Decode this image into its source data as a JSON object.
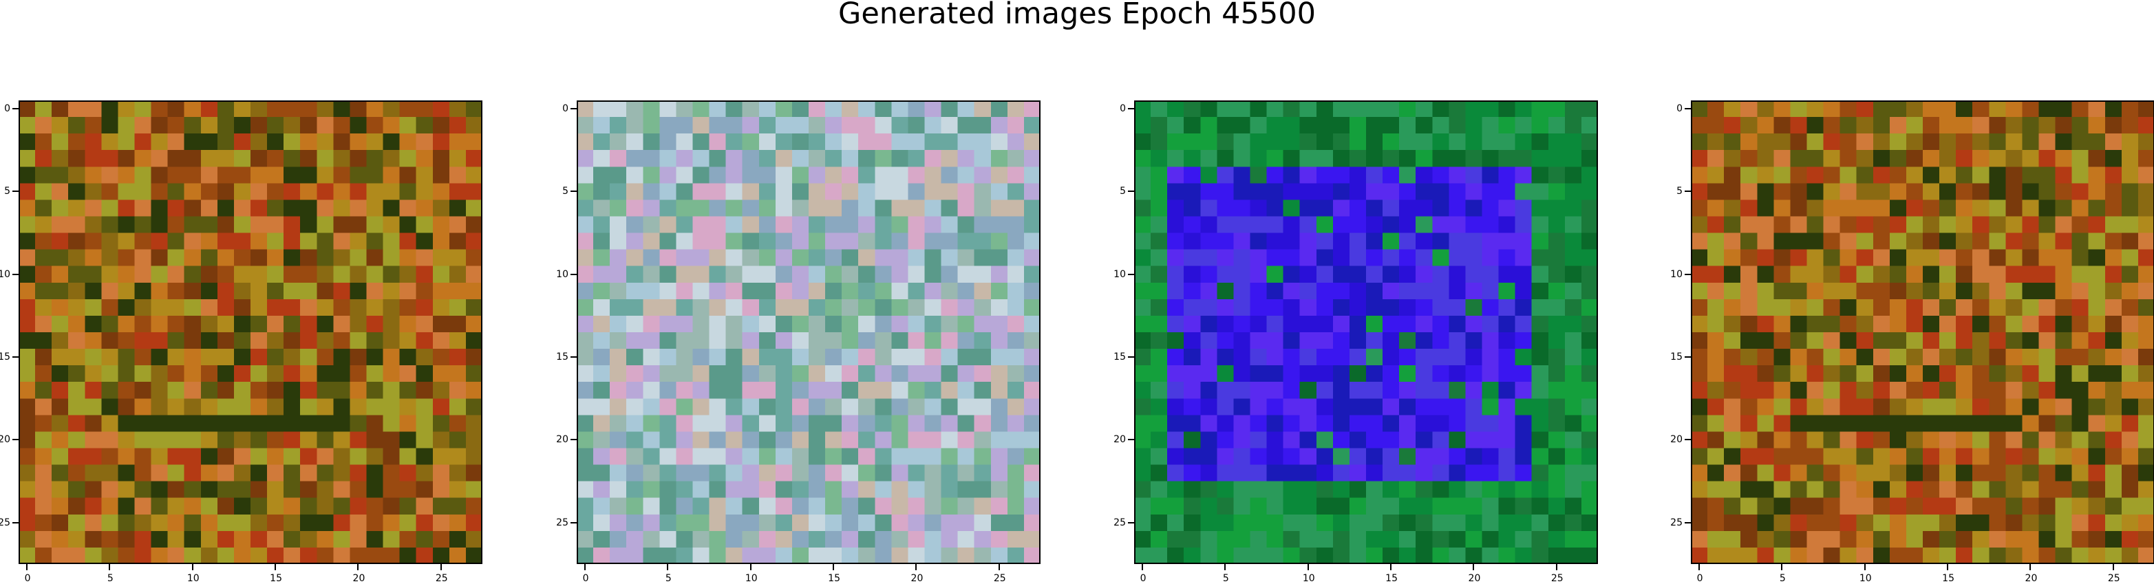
{
  "figure": {
    "title": "Generated images Epoch 45500"
  },
  "chart_data": [
    {
      "type": "heatmap",
      "grid": [
        28,
        28
      ],
      "xticks": [
        "0",
        "5",
        "10",
        "15",
        "20",
        "25"
      ],
      "yticks": [
        "0",
        "5",
        "10",
        "15",
        "20",
        "25"
      ],
      "xlim": [
        -0.5,
        27.5
      ],
      "ylim": [
        27.5,
        -0.5
      ],
      "palette": [
        "#b08a1c",
        "#8a6a12",
        "#c4761e",
        "#9a4a10",
        "#7a3a0c",
        "#5a5a10",
        "#b43a14",
        "#d07a3a",
        "#a0a02a",
        "#2a3a0a"
      ],
      "notes": "pixel art: mostly olive/orange/brown noise, with dark streak along row 19"
    },
    {
      "type": "heatmap",
      "grid": [
        28,
        28
      ],
      "xticks": [
        "0",
        "5",
        "10",
        "15",
        "20",
        "25"
      ],
      "yticks": [
        "0",
        "5",
        "10",
        "15",
        "20",
        "25"
      ],
      "xlim": [
        -0.5,
        27.5
      ],
      "ylim": [
        27.5,
        -0.5
      ],
      "palette": [
        "#9ab8b0",
        "#b8a8d8",
        "#7ab890",
        "#c8d8e0",
        "#5a9a8a",
        "#d8a8c8",
        "#a8c8d8",
        "#8aa8c0",
        "#c8b8a8",
        "#6aa8a0"
      ],
      "notes": "pastel multicolor noise"
    },
    {
      "type": "heatmap",
      "grid": [
        28,
        28
      ],
      "xticks": [
        "0",
        "5",
        "10",
        "15",
        "20",
        "25"
      ],
      "yticks": [
        "0",
        "5",
        "10",
        "15",
        "20",
        "25"
      ],
      "xlim": [
        -0.5,
        27.5
      ],
      "ylim": [
        27.5,
        -0.5
      ],
      "palette": [
        "#0a8a3a",
        "#14a03c",
        "#1a7a3a",
        "#0a6a2a",
        "#2a9a5a",
        "#3a16f0",
        "#2a10d8",
        "#5a2af0",
        "#1a1ab8",
        "#4a3ae0"
      ],
      "notes": "green border region with blue/purple square center (rows 4-22, cols 2-23)"
    },
    {
      "type": "heatmap",
      "grid": [
        28,
        28
      ],
      "xticks": [
        "0",
        "5",
        "10",
        "15",
        "20",
        "25"
      ],
      "yticks": [
        "0",
        "5",
        "10",
        "15",
        "20",
        "25"
      ],
      "xlim": [
        -0.5,
        27.5
      ],
      "ylim": [
        27.5,
        -0.5
      ],
      "palette": [
        "#b08a1c",
        "#8a6a12",
        "#c4761e",
        "#9a4a10",
        "#7a3a0c",
        "#5a5a10",
        "#b43a14",
        "#d07a3a",
        "#a0a02a",
        "#2a3a0a"
      ],
      "notes": "similar to panel 1"
    }
  ]
}
